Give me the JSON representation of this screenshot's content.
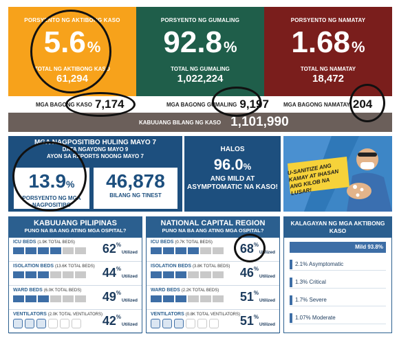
{
  "top": {
    "active": {
      "title": "PORSYENTO NG AKTIBONG KASO",
      "value": "5.6",
      "pct": "%",
      "sub": "TOTAL NG AKTIBONG KASO",
      "num": "61,294"
    },
    "recovered": {
      "title": "PORSYENTO NG GUMALING",
      "value": "92.8",
      "pct": "%",
      "sub": "TOTAL NG GUMALING",
      "num": "1,022,224"
    },
    "deaths": {
      "title": "PORSYENTO NG NAMATAY",
      "value": "1.68",
      "pct": "%",
      "sub": "TOTAL NG NAMATAY",
      "num": "18,472"
    }
  },
  "new_cases": [
    {
      "label": "MGA BAGONG KASO",
      "value": "7,174"
    },
    {
      "label": "MGA BAGONG GUMALING",
      "value": "9,197"
    },
    {
      "label": "MGA BAGONG NAMATAY",
      "value": "204"
    }
  ],
  "total": {
    "label": "KABUUANG BILANG NG KASO",
    "value": "1,101,990"
  },
  "positivity": {
    "title": "MGA NAGPOSITIBO HULING MAYO 7",
    "sub1": "DATA NGAYONG MAYO 9",
    "sub2": "AYON SA REPORTS NOONG MAYO 7",
    "rate": "13.9",
    "pct": "%",
    "rate_label": "PORSYENTO NG MGA NAGPOSITIBO",
    "tested": "46,878",
    "tested_label": "BILANG NG TINEST"
  },
  "mild": {
    "halos": "HALOS",
    "value": "96.0",
    "pct": "%",
    "text": "ANG MILD AT ASYMPTOMATIC NA KASO!"
  },
  "poster": {
    "text": "U-SANITIZE ANG KAMAY AT IHASAN ANG KILOB NA LUSAR!",
    "icon": "health-worker-illustration"
  },
  "hospitals": [
    {
      "title": "KABUUANG PILIPINAS",
      "sub": "PUNO NA BA ANG ATING MGA OSPITAL?",
      "rows": [
        {
          "label": "ICU BEDS",
          "detail": "(1.9K TOTAL BEDS)",
          "pct": "62",
          "util": "Utilized",
          "filled": 0.62
        },
        {
          "label": "ISOLATION BEDS",
          "detail": "(13.6K TOTAL BEDS)",
          "pct": "44",
          "util": "Utilized",
          "filled": 0.44
        },
        {
          "label": "WARD BEDS",
          "detail": "(6.0K TOTAL BEDS)",
          "pct": "49",
          "util": "Utilized",
          "filled": 0.49
        },
        {
          "label": "VENTILATORS",
          "detail": "(2.0K TOTAL VENTILATORS)",
          "pct": "42",
          "util": "Utilized",
          "filled": 0.42
        }
      ]
    },
    {
      "title": "NATIONAL CAPITAL REGION",
      "sub": "PUNO NA BA ANG ATING MGA OSPITAL?",
      "rows": [
        {
          "label": "ICU BEDS",
          "detail": "(0.7K TOTAL BEDS)",
          "pct": "68",
          "util": "Utilized",
          "filled": 0.68
        },
        {
          "label": "ISOLATION BEDS",
          "detail": "(3.8K TOTAL BEDS)",
          "pct": "46",
          "util": "Utilized",
          "filled": 0.46
        },
        {
          "label": "WARD BEDS",
          "detail": "(2.2K TOTAL BEDS)",
          "pct": "51",
          "util": "Utilized",
          "filled": 0.51
        },
        {
          "label": "VENTILATORS",
          "detail": "(0.8K TOTAL VENTILATORS)",
          "pct": "51",
          "util": "Utilized",
          "filled": 0.51
        }
      ]
    }
  ],
  "status": {
    "title": "KALAGAYAN NG MGA AKTIBONG KASO",
    "mild": "Mild 93.8%",
    "items": [
      "2.1% Asymptomatic",
      "1.3% Critical",
      "1.7% Severe",
      "1.07% Moderate"
    ]
  }
}
